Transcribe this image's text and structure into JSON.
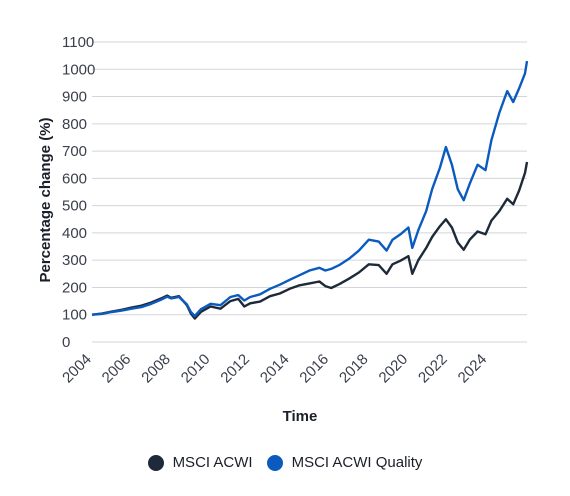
{
  "chart_data": {
    "type": "line",
    "xlabel": "Time",
    "ylabel": "Percentage change (%)",
    "ylim": [
      0,
      1100
    ],
    "xlim": [
      2004,
      2026
    ],
    "yticks": [
      0,
      100,
      200,
      300,
      400,
      500,
      600,
      700,
      800,
      900,
      1000,
      1100
    ],
    "xticks": [
      2004,
      2006,
      2008,
      2010,
      2012,
      2014,
      2016,
      2018,
      2020,
      2022,
      2024
    ],
    "grid": "horizontal",
    "legend_position": "bottom",
    "series": [
      {
        "name": "MSCI ACWI",
        "color": "#1e2a3a",
        "points": [
          [
            2004.0,
            100
          ],
          [
            2004.5,
            104
          ],
          [
            2005.0,
            112
          ],
          [
            2005.5,
            118
          ],
          [
            2006.0,
            126
          ],
          [
            2006.5,
            133
          ],
          [
            2007.0,
            145
          ],
          [
            2007.5,
            160
          ],
          [
            2007.8,
            170
          ],
          [
            2008.0,
            162
          ],
          [
            2008.4,
            168
          ],
          [
            2008.8,
            135
          ],
          [
            2009.0,
            104
          ],
          [
            2009.2,
            86
          ],
          [
            2009.5,
            110
          ],
          [
            2010.0,
            130
          ],
          [
            2010.5,
            122
          ],
          [
            2011.0,
            150
          ],
          [
            2011.4,
            158
          ],
          [
            2011.7,
            130
          ],
          [
            2012.0,
            142
          ],
          [
            2012.5,
            148
          ],
          [
            2013.0,
            168
          ],
          [
            2013.5,
            178
          ],
          [
            2014.0,
            195
          ],
          [
            2014.5,
            208
          ],
          [
            2015.0,
            215
          ],
          [
            2015.5,
            222
          ],
          [
            2015.8,
            205
          ],
          [
            2016.1,
            198
          ],
          [
            2016.5,
            212
          ],
          [
            2017.0,
            232
          ],
          [
            2017.5,
            255
          ],
          [
            2018.0,
            285
          ],
          [
            2018.5,
            282
          ],
          [
            2018.9,
            250
          ],
          [
            2019.2,
            285
          ],
          [
            2019.6,
            298
          ],
          [
            2020.0,
            315
          ],
          [
            2020.2,
            250
          ],
          [
            2020.5,
            300
          ],
          [
            2020.9,
            345
          ],
          [
            2021.2,
            385
          ],
          [
            2021.6,
            425
          ],
          [
            2021.9,
            450
          ],
          [
            2022.2,
            420
          ],
          [
            2022.5,
            365
          ],
          [
            2022.8,
            338
          ],
          [
            2023.1,
            375
          ],
          [
            2023.5,
            405
          ],
          [
            2023.9,
            395
          ],
          [
            2024.2,
            445
          ],
          [
            2024.6,
            480
          ],
          [
            2025.0,
            525
          ],
          [
            2025.3,
            505
          ],
          [
            2025.6,
            555
          ],
          [
            2025.9,
            620
          ],
          [
            2026.0,
            660
          ]
        ]
      },
      {
        "name": "MSCI ACWI Quality",
        "color": "#0b5bbf",
        "points": [
          [
            2004.0,
            100
          ],
          [
            2004.5,
            103
          ],
          [
            2005.0,
            110
          ],
          [
            2005.5,
            115
          ],
          [
            2006.0,
            122
          ],
          [
            2006.5,
            128
          ],
          [
            2007.0,
            140
          ],
          [
            2007.5,
            155
          ],
          [
            2007.8,
            166
          ],
          [
            2008.0,
            160
          ],
          [
            2008.4,
            165
          ],
          [
            2008.8,
            138
          ],
          [
            2009.0,
            110
          ],
          [
            2009.2,
            95
          ],
          [
            2009.5,
            120
          ],
          [
            2010.0,
            140
          ],
          [
            2010.5,
            135
          ],
          [
            2011.0,
            165
          ],
          [
            2011.4,
            172
          ],
          [
            2011.7,
            152
          ],
          [
            2012.0,
            165
          ],
          [
            2012.5,
            175
          ],
          [
            2013.0,
            195
          ],
          [
            2013.5,
            210
          ],
          [
            2014.0,
            228
          ],
          [
            2014.5,
            245
          ],
          [
            2015.0,
            262
          ],
          [
            2015.5,
            272
          ],
          [
            2015.8,
            262
          ],
          [
            2016.1,
            268
          ],
          [
            2016.5,
            282
          ],
          [
            2017.0,
            305
          ],
          [
            2017.5,
            335
          ],
          [
            2018.0,
            375
          ],
          [
            2018.5,
            368
          ],
          [
            2018.9,
            335
          ],
          [
            2019.2,
            375
          ],
          [
            2019.6,
            395
          ],
          [
            2020.0,
            420
          ],
          [
            2020.2,
            345
          ],
          [
            2020.5,
            410
          ],
          [
            2020.9,
            480
          ],
          [
            2021.2,
            560
          ],
          [
            2021.6,
            640
          ],
          [
            2021.9,
            715
          ],
          [
            2022.2,
            650
          ],
          [
            2022.5,
            560
          ],
          [
            2022.8,
            520
          ],
          [
            2023.1,
            580
          ],
          [
            2023.5,
            650
          ],
          [
            2023.9,
            630
          ],
          [
            2024.2,
            740
          ],
          [
            2024.6,
            840
          ],
          [
            2025.0,
            920
          ],
          [
            2025.3,
            880
          ],
          [
            2025.6,
            930
          ],
          [
            2025.9,
            985
          ],
          [
            2026.0,
            1030
          ]
        ]
      }
    ]
  }
}
